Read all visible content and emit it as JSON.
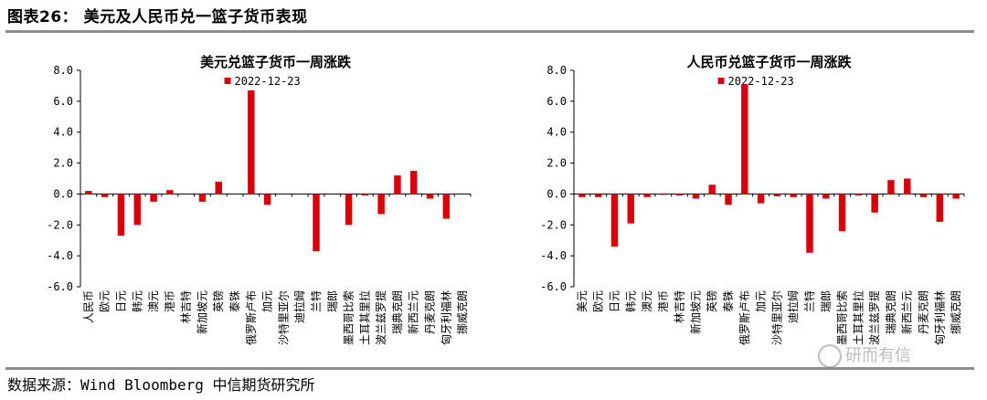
{
  "figure_title": "图表26： 美元及人民币兑一篮子货币表现",
  "source_note": "数据来源：Wind  Bloomberg  中信期货研究所",
  "watermark_text": "研而有信",
  "colors": {
    "bar": "#d8000a",
    "axis": "#000000",
    "rule": "#8c8c8c"
  },
  "chart_data": [
    {
      "type": "bar",
      "title": "美元兑篮子货币一周涨跌",
      "legend": [
        "2022-12-23"
      ],
      "legend_position": "top-center",
      "grid": false,
      "ylim": [
        -6.0,
        8.0
      ],
      "yticks": [
        "8.0",
        "6.0",
        "4.0",
        "2.0",
        "0.0",
        "-2.0",
        "-4.0",
        "-6.0"
      ],
      "categories": [
        "人民币",
        "欧元",
        "日元",
        "韩元",
        "澳元",
        "港币",
        "林吉特",
        "新加坡元",
        "英镑",
        "泰铢",
        "俄罗斯卢布",
        "加元",
        "沙特里亚尔",
        "迪拉姆",
        "兰特",
        "瑞郎",
        "墨西哥比索",
        "土耳其里拉",
        "波兰兹罗提",
        "瑞典克朗",
        "新西兰元",
        "丹麦克朗",
        "匈牙利福林",
        "挪威克朗"
      ],
      "series": [
        {
          "name": "2022-12-23",
          "values": [
            0.2,
            -0.2,
            -2.7,
            -2.0,
            -0.5,
            0.25,
            0.0,
            -0.5,
            0.8,
            0.0,
            6.7,
            -0.7,
            0.0,
            0.0,
            -3.7,
            0.0,
            -2.0,
            -0.1,
            -1.3,
            1.2,
            1.5,
            -0.3,
            -1.6,
            0.0
          ]
        }
      ]
    },
    {
      "type": "bar",
      "title": "人民币兑篮子货币一周涨跌",
      "legend": [
        "2022-12-23"
      ],
      "legend_position": "top-center",
      "grid": false,
      "ylim": [
        -6.0,
        8.0
      ],
      "yticks": [
        "8.0",
        "6.0",
        "4.0",
        "2.0",
        "0.0",
        "-2.0",
        "-4.0",
        "-6.0"
      ],
      "categories": [
        "美元",
        "欧元",
        "日元",
        "韩元",
        "澳元",
        "港币",
        "林吉特",
        "新加坡元",
        "英镑",
        "泰铢",
        "俄罗斯卢布",
        "加元",
        "沙特里亚尔",
        "迪拉姆",
        "兰特",
        "瑞郎",
        "墨西哥比索",
        "土耳其里拉",
        "波兰兹罗提",
        "瑞典克朗",
        "新西兰元",
        "丹麦克朗",
        "匈牙利福林",
        "挪威克朗"
      ],
      "series": [
        {
          "name": "2022-12-23",
          "values": [
            -0.2,
            -0.2,
            -3.4,
            -1.9,
            -0.2,
            -0.05,
            -0.1,
            -0.3,
            0.6,
            -0.7,
            7.1,
            -0.6,
            -0.15,
            -0.2,
            -3.8,
            -0.3,
            -2.4,
            -0.1,
            -1.2,
            0.9,
            1.0,
            -0.2,
            -1.8,
            -0.3
          ]
        }
      ]
    }
  ]
}
